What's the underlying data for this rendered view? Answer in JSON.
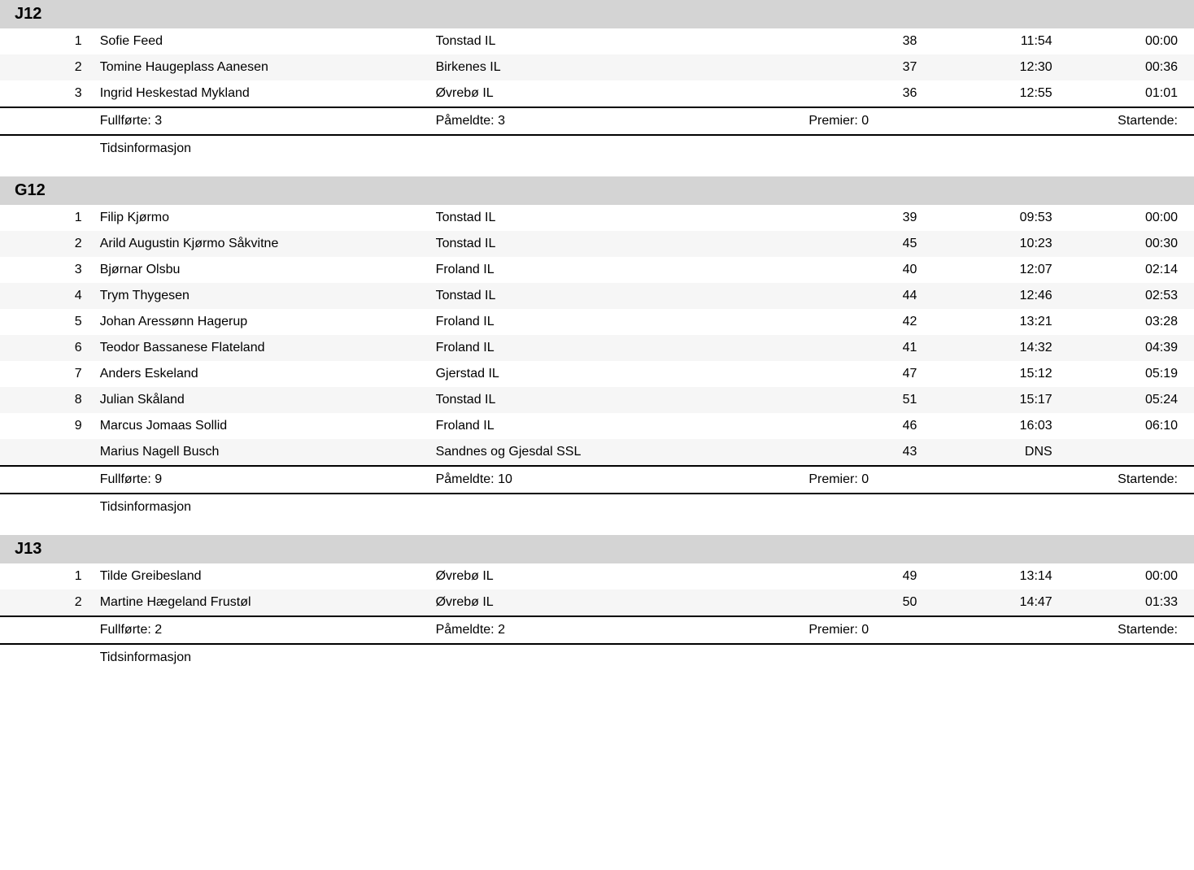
{
  "labels": {
    "fullforte": "Fullførte:",
    "pameldte": "Påmeldte:",
    "premier": "Premier:",
    "startende": "Startende:",
    "tidsinformasjon": "Tidsinformasjon"
  },
  "categories": [
    {
      "title": "J12",
      "rows": [
        {
          "rank": "1",
          "name": "Sofie Feed",
          "club": "Tonstad IL",
          "bib": "38",
          "time": "11:54",
          "diff": "00:00"
        },
        {
          "rank": "2",
          "name": "Tomine Haugeplass Aanesen",
          "club": "Birkenes IL",
          "bib": "37",
          "time": "12:30",
          "diff": "00:36"
        },
        {
          "rank": "3",
          "name": "Ingrid Heskestad Mykland",
          "club": "Øvrebø IL",
          "bib": "36",
          "time": "12:55",
          "diff": "01:01"
        }
      ],
      "summary": {
        "fullforte": "3",
        "pameldte": "3",
        "premier": "0"
      }
    },
    {
      "title": "G12",
      "rows": [
        {
          "rank": "1",
          "name": "Filip Kjørmo",
          "club": "Tonstad IL",
          "bib": "39",
          "time": "09:53",
          "diff": "00:00"
        },
        {
          "rank": "2",
          "name": "Arild Augustin Kjørmo Såkvitne",
          "club": "Tonstad IL",
          "bib": "45",
          "time": "10:23",
          "diff": "00:30"
        },
        {
          "rank": "3",
          "name": "Bjørnar Olsbu",
          "club": "Froland IL",
          "bib": "40",
          "time": "12:07",
          "diff": "02:14"
        },
        {
          "rank": "4",
          "name": "Trym Thygesen",
          "club": "Tonstad IL",
          "bib": "44",
          "time": "12:46",
          "diff": "02:53"
        },
        {
          "rank": "5",
          "name": "Johan Aressønn Hagerup",
          "club": "Froland IL",
          "bib": "42",
          "time": "13:21",
          "diff": "03:28"
        },
        {
          "rank": "6",
          "name": "Teodor Bassanese Flateland",
          "club": "Froland IL",
          "bib": "41",
          "time": "14:32",
          "diff": "04:39"
        },
        {
          "rank": "7",
          "name": "Anders Eskeland",
          "club": "Gjerstad IL",
          "bib": "47",
          "time": "15:12",
          "diff": "05:19"
        },
        {
          "rank": "8",
          "name": "Julian Skåland",
          "club": "Tonstad IL",
          "bib": "51",
          "time": "15:17",
          "diff": "05:24"
        },
        {
          "rank": "9",
          "name": "Marcus Jomaas Sollid",
          "club": "Froland IL",
          "bib": "46",
          "time": "16:03",
          "diff": "06:10"
        },
        {
          "rank": "",
          "name": "Marius Nagell Busch",
          "club": "Sandnes og Gjesdal SSL",
          "bib": "43",
          "time": "DNS",
          "diff": ""
        }
      ],
      "summary": {
        "fullforte": "9",
        "pameldte": "10",
        "premier": "0"
      }
    },
    {
      "title": "J13",
      "rows": [
        {
          "rank": "1",
          "name": "Tilde Greibesland",
          "club": "Øvrebø IL",
          "bib": "49",
          "time": "13:14",
          "diff": "00:00"
        },
        {
          "rank": "2",
          "name": "Martine Hægeland Frustøl",
          "club": "Øvrebø IL",
          "bib": "50",
          "time": "14:47",
          "diff": "01:33"
        }
      ],
      "summary": {
        "fullforte": "2",
        "pameldte": "2",
        "premier": "0"
      }
    }
  ]
}
